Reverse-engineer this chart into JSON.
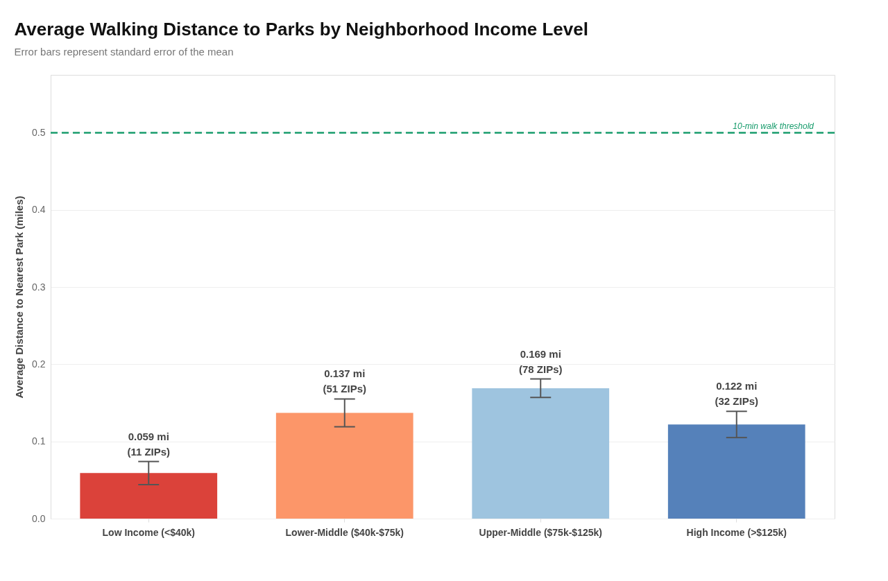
{
  "chart_data": {
    "type": "bar",
    "title": "Average Walking Distance to Parks by Neighborhood Income Level",
    "subtitle": "Error bars represent standard error of the mean",
    "ylabel": "Average Distance to Nearest Park (miles)",
    "categories": [
      "Low Income (<$40k)",
      "Lower-Middle ($40k-$75k)",
      "Upper-Middle ($75k-$125k)",
      "High Income (>$125k)"
    ],
    "values": [
      0.059,
      0.137,
      0.169,
      0.122
    ],
    "colors": [
      "#db423a",
      "#fc9669",
      "#9ec4df",
      "#5581ba"
    ],
    "errors": [
      0.015,
      0.018,
      0.012,
      0.017
    ],
    "value_labels": [
      "0.059 mi\n(11 ZIPs)",
      "0.137 mi\n(51 ZIPs)",
      "0.169 mi\n(78 ZIPs)",
      "0.122 mi\n(32 ZIPs)"
    ],
    "ylim": [
      0,
      0.575
    ],
    "yticks": [
      {
        "value": 0,
        "label": "0.0"
      },
      0.1,
      0.2,
      0.3,
      0.4,
      0.5
    ],
    "ref_lines": [
      {
        "axis": "y",
        "value": 0.5,
        "label": "10-min walk threshold",
        "color": "#189c6c",
        "line_style": "dashed"
      }
    ],
    "grid": "y",
    "legend": false
  }
}
